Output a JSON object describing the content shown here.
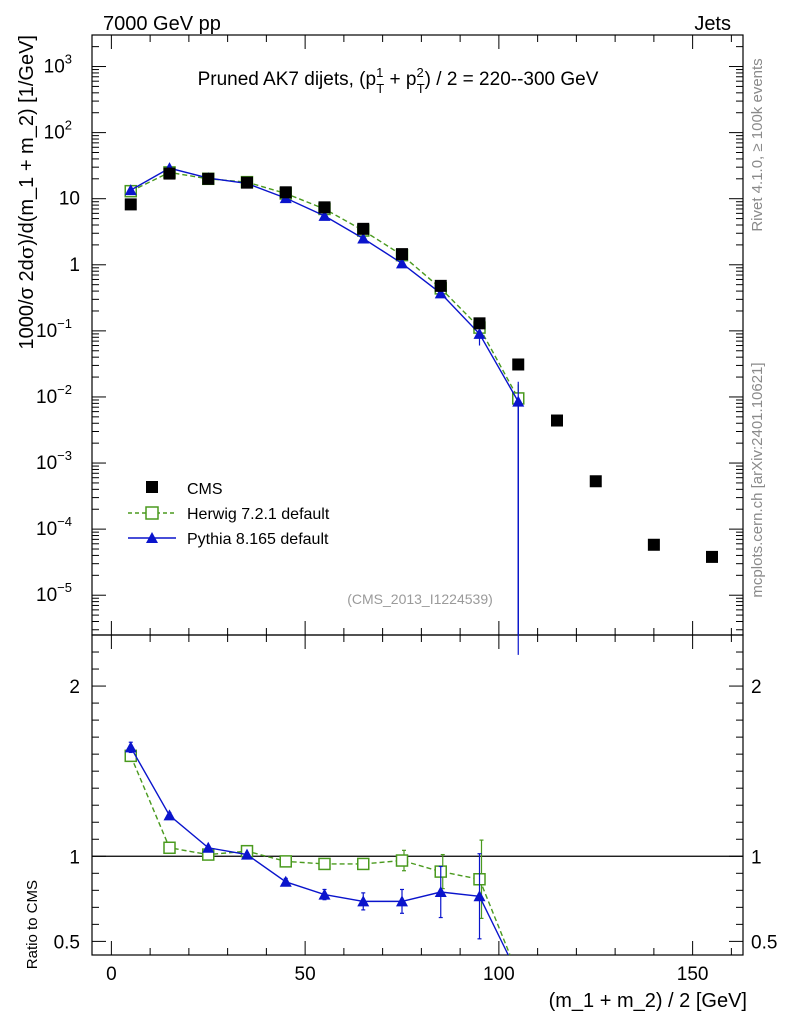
{
  "header": {
    "left": "7000 GeV pp",
    "right": "Jets"
  },
  "side_labels": {
    "rivet": "Rivet 4.1.0, ≥ 100k events",
    "mcplots": "mcplots.cern.ch [arXiv:2401.10621]"
  },
  "colors": {
    "cms": "#000000",
    "herwig": "#4a9a1e",
    "pythia": "#0a14cc"
  },
  "chart_data": [
    {
      "type": "scatter",
      "yscale": "log",
      "title": "Pruned AK7 dijets, (p_T^1 + p_T^2) / 2 = 220--300 GeV",
      "title_parts": {
        "pre": "Pruned AK7 dijets, (p",
        "sup1": "1",
        "sub1": "T",
        "mid": " + p",
        "sup2": "2",
        "sub2": "T",
        "post": ") / 2 = 220--300 GeV"
      },
      "ylabel": "1000/σ  2dσ)/d(m_1 + m_2) [1/GeV]",
      "ylabel_parts": {
        "pre": "1000/σ  2d",
        "sigma": "σ",
        "post": ")/d(m_1 + m_2) [1/GeV]"
      },
      "xlim": [
        -5,
        163
      ],
      "ylim": [
        2.5e-06,
        3000
      ],
      "yticks": [
        {
          "v": 1e-05,
          "base": "10",
          "exp": "−5"
        },
        {
          "v": 0.0001,
          "base": "10",
          "exp": "−4"
        },
        {
          "v": 0.001,
          "base": "10",
          "exp": "−3"
        },
        {
          "v": 0.01,
          "base": "10",
          "exp": "−2"
        },
        {
          "v": 0.1,
          "base": "10",
          "exp": "−1"
        },
        {
          "v": 1,
          "base": "1",
          "exp": ""
        },
        {
          "v": 10,
          "base": "10",
          "exp": ""
        },
        {
          "v": 100,
          "base": "10",
          "exp": "2"
        },
        {
          "v": 1000,
          "base": "10",
          "exp": "3"
        }
      ],
      "analysis_id": "(CMS_2013_I1224539)",
      "legend": [
        {
          "key": "cms",
          "label": "CMS"
        },
        {
          "key": "herwig",
          "label": "Herwig 7.2.1 default"
        },
        {
          "key": "pythia",
          "label": "Pythia 8.165 default"
        }
      ],
      "series": [
        {
          "name": "CMS",
          "key": "cms",
          "marker": "square-filled",
          "x": [
            5,
            15,
            25,
            35,
            45,
            55,
            65,
            75,
            85,
            95,
            105,
            115,
            125,
            140,
            155
          ],
          "y": [
            8.2,
            24,
            20,
            17.5,
            12.5,
            7.4,
            3.5,
            1.45,
            0.48,
            0.13,
            0.031,
            0.0044,
            0.00053,
            5.8e-05,
            3.8e-05
          ]
        },
        {
          "name": "Herwig 7.2.1 default",
          "key": "herwig",
          "marker": "square-open",
          "dashed": true,
          "x": [
            5,
            15,
            25,
            35,
            45,
            55,
            65,
            75,
            85,
            95,
            105
          ],
          "y": [
            13,
            25,
            20,
            17.8,
            12,
            7,
            3.3,
            1.4,
            0.44,
            0.112,
            0.0095
          ],
          "yerr": [
            0.4,
            0.6,
            0.4,
            0.3,
            0.2,
            0.15,
            0.1,
            0.06,
            0.04,
            0.015,
            0.006
          ]
        },
        {
          "name": "Pythia 8.165 default",
          "key": "pythia",
          "marker": "triangle-filled",
          "x": [
            5,
            15,
            25,
            35,
            45,
            55,
            65,
            75,
            85,
            95,
            105
          ],
          "y": [
            13.5,
            29,
            20.5,
            17,
            10.2,
            5.5,
            2.5,
            1.05,
            0.37,
            0.09,
            0.0085
          ],
          "yerr": [
            0.4,
            0.6,
            0.4,
            0.3,
            0.2,
            0.15,
            0.1,
            0.06,
            0.05,
            0.03,
            0.0085
          ]
        }
      ]
    },
    {
      "type": "scatter",
      "ylabel": "Ratio to CMS",
      "xlabel": "(m_1 + m_2) / 2 [GeV]",
      "xlim": [
        -5,
        163
      ],
      "ylim": [
        0.42,
        2.3
      ],
      "xticks": [
        0,
        50,
        100,
        150
      ],
      "yticks": [
        0.5,
        1,
        2
      ],
      "reference_line": 1,
      "series": [
        {
          "name": "Herwig 7.2.1 default",
          "key": "herwig",
          "marker": "square-open",
          "dashed": true,
          "x": [
            5,
            15,
            25,
            35,
            45,
            55,
            65,
            75,
            85,
            95
          ],
          "y": [
            1.59,
            1.05,
            1.01,
            1.03,
            0.97,
            0.955,
            0.955,
            0.975,
            0.91,
            0.865
          ],
          "yerr": [
            0.03,
            0.015,
            0.01,
            0.01,
            0.015,
            0.02,
            0.03,
            0.06,
            0.1,
            0.23
          ],
          "drop": {
            "x": [
              95,
              105
            ],
            "y": [
              0.865,
              0.3
            ]
          }
        },
        {
          "name": "Pythia 8.165 default",
          "key": "pythia",
          "marker": "triangle-filled",
          "x": [
            5,
            15,
            25,
            35,
            45,
            55,
            65,
            75,
            85,
            95
          ],
          "y": [
            1.64,
            1.24,
            1.05,
            1.01,
            0.85,
            0.775,
            0.735,
            0.735,
            0.79,
            0.765
          ],
          "yerr": [
            0.03,
            0.015,
            0.01,
            0.01,
            0.02,
            0.03,
            0.05,
            0.07,
            0.15,
            0.25
          ],
          "drop": {
            "x": [
              95,
              105
            ],
            "y": [
              0.765,
              0.3
            ]
          }
        }
      ]
    }
  ]
}
